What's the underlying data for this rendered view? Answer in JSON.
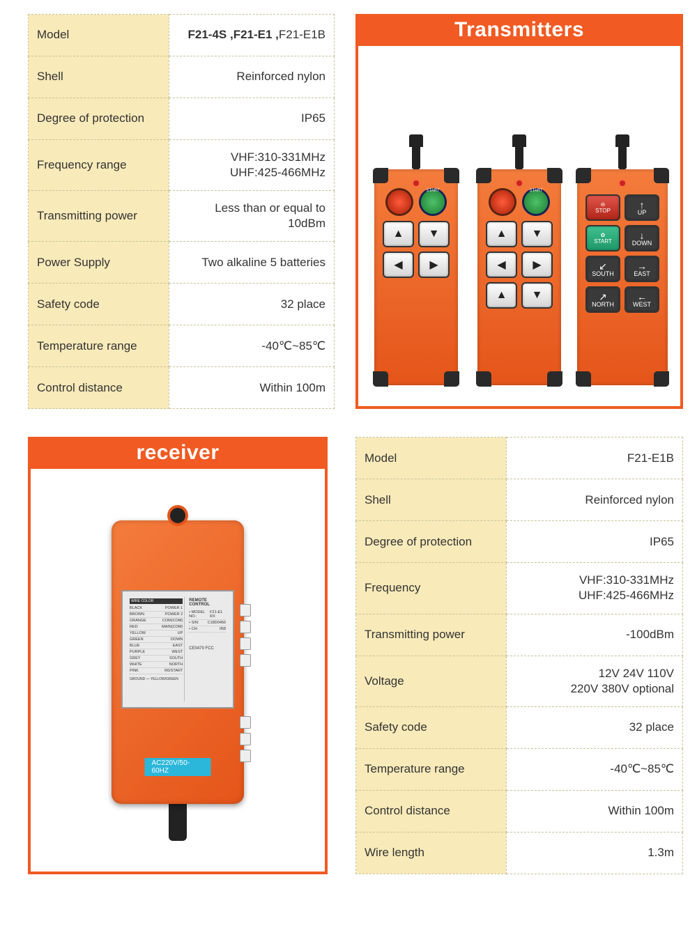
{
  "colors": {
    "orange": "#f15a22",
    "cell_label_bg": "#f8eab9",
    "border_dash": "#c9c39a"
  },
  "transmitter_table": {
    "rows": [
      {
        "label": "Model",
        "value_html": "F21-4S ,F21-E1 ,F21-E1B",
        "bold_prefix": "F21-4S ,F21-E1 ,"
      },
      {
        "label": "Shell",
        "value": "Reinforced nylon"
      },
      {
        "label": "Degree of protection",
        "value": "IP65"
      },
      {
        "label": "Frequency range",
        "value": "VHF:310-331MHz\nUHF:425-466MHz"
      },
      {
        "label": "Transmitting power",
        "value": "Less than or equal to 10dBm"
      },
      {
        "label": "Power Supply",
        "value": "Two alkaline 5 batteries"
      },
      {
        "label": "Safety code",
        "value": "32 place"
      },
      {
        "label": "Temperature range",
        "value": "-40℃~85℃"
      },
      {
        "label": "Control distance",
        "value": "Within 100m"
      }
    ]
  },
  "receiver_table": {
    "rows": [
      {
        "label": "Model",
        "value": "F21-E1B"
      },
      {
        "label": "Shell",
        "value": "Reinforced nylon"
      },
      {
        "label": "Degree of protection",
        "value": "IP65"
      },
      {
        "label": "Frequency",
        "value": "VHF:310-331MHz\nUHF:425-466MHz"
      },
      {
        "label": "Transmitting power",
        "value": "-100dBm"
      },
      {
        "label": "Voltage",
        "value": "12V 24V 110V\n220V 380V optional"
      },
      {
        "label": "Safety code",
        "value": "32 place"
      },
      {
        "label": "Temperature range",
        "value": "-40℃~85℃"
      },
      {
        "label": "Control distance",
        "value": "Within 100m"
      },
      {
        "label": "Wire length",
        "value": "1.3m"
      }
    ]
  },
  "panels": {
    "transmitters_title": "Transmitters",
    "receiver_title": "receiver"
  },
  "remote_buttons": {
    "r1": [
      "▲",
      "▼",
      "◀",
      "▶"
    ],
    "r2": [
      "▲",
      "▼",
      "◀",
      "▶",
      "▲",
      "▼"
    ],
    "r3": [
      {
        "t": "STOP",
        "a": "⊖",
        "c": "redb"
      },
      {
        "t": "UP",
        "a": "↑",
        "c": "dark"
      },
      {
        "t": "START",
        "a": "✿",
        "c": "greenb"
      },
      {
        "t": "DOWN",
        "a": "↓",
        "c": "dark"
      },
      {
        "t": "SOUTH",
        "a": "↙",
        "c": "dark"
      },
      {
        "t": "EAST",
        "a": "→",
        "c": "dark"
      },
      {
        "t": "NORTH",
        "a": "↗",
        "c": "dark"
      },
      {
        "t": "WEST",
        "a": "←",
        "c": "dark"
      }
    ]
  },
  "receiver_label": {
    "title": "REMOTE CONTROL",
    "model_no": "F21-E1 RX",
    "sn": "C18D0456",
    "ch": "058",
    "cert": "CE0470  FCC",
    "ac_tag": "AC220V/50-60HZ",
    "wire_rows": [
      [
        "BLACK",
        "POWER 1"
      ],
      [
        "BROWN",
        "POWER 2"
      ],
      [
        "ORANGE",
        "COM(COM)"
      ],
      [
        "RED",
        "MAIN(COM)"
      ],
      [
        "YELLOW",
        "UP"
      ],
      [
        "GREEN",
        "DOWN"
      ],
      [
        "BLUE",
        "EAST"
      ],
      [
        "PURPLE",
        "WEST"
      ],
      [
        "GREY",
        "SOUTH"
      ],
      [
        "WHITE",
        "NORTH"
      ],
      [
        "PINK",
        "R0/START"
      ]
    ],
    "ground": "GROUND — YELLOW/GREEN"
  }
}
